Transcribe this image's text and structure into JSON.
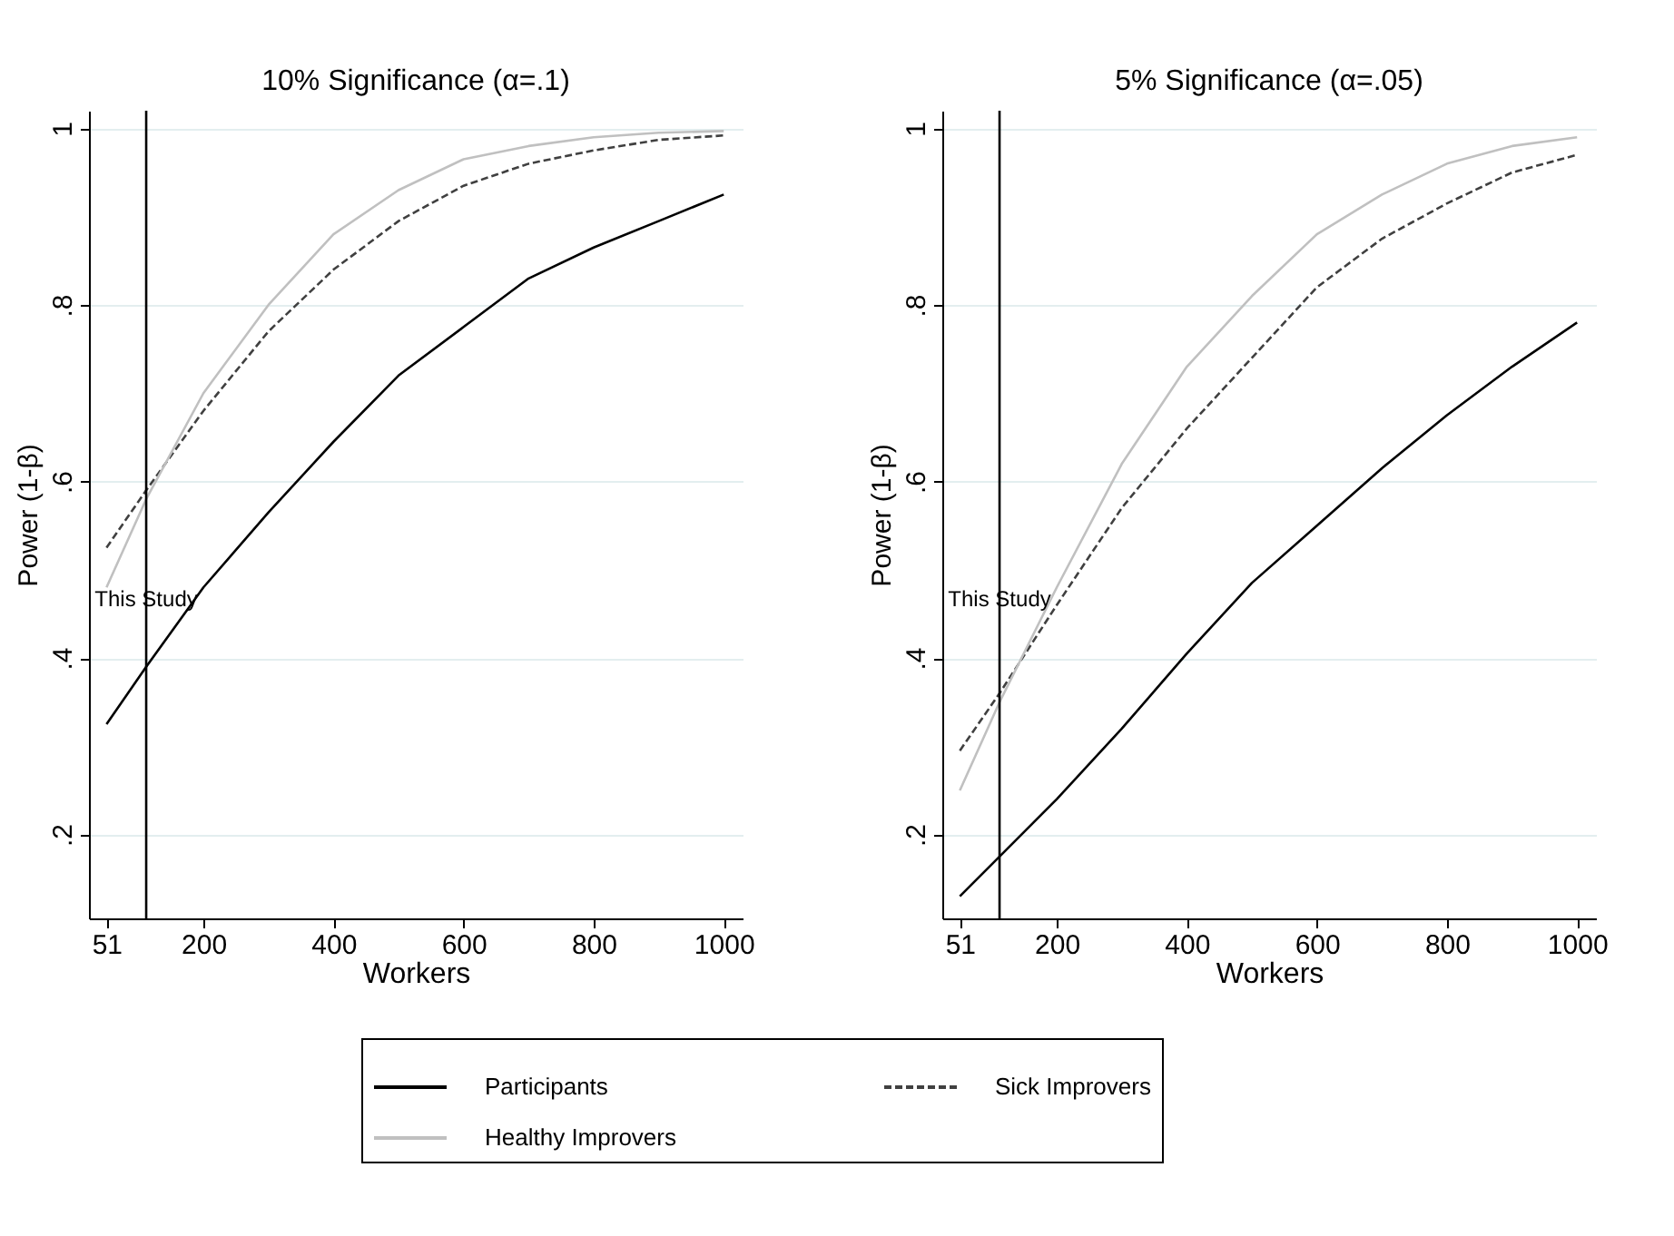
{
  "chart_data": [
    {
      "type": "line",
      "title": "10% Significance (α=.1)",
      "xlabel": "Workers",
      "ylabel": "Power (1-β)",
      "x": [
        51,
        112,
        200,
        300,
        400,
        500,
        600,
        700,
        800,
        900,
        1000
      ],
      "series": [
        {
          "name": "Participants",
          "color": "#000000",
          "line_style": "solid",
          "values": [
            0.325,
            0.39,
            0.48,
            0.565,
            0.645,
            0.72,
            0.775,
            0.83,
            0.865,
            0.895,
            0.925
          ]
        },
        {
          "name": "Sick Improvers",
          "color": "#404040",
          "line_style": "dashed",
          "values": [
            0.525,
            0.59,
            0.68,
            0.77,
            0.84,
            0.895,
            0.935,
            0.96,
            0.975,
            0.987,
            0.992
          ]
        },
        {
          "name": "Healthy Improvers",
          "color": "#c0c0c0",
          "line_style": "solid",
          "values": [
            0.48,
            0.58,
            0.7,
            0.8,
            0.88,
            0.93,
            0.965,
            0.98,
            0.99,
            0.995,
            0.997
          ]
        }
      ],
      "xlim": [
        24,
        1029
      ],
      "xticks": [
        51,
        200,
        400,
        600,
        800,
        1000
      ],
      "ylim": [
        0.105,
        1.02
      ],
      "yticks": [
        {
          "value": 0.2,
          "label": ".2"
        },
        {
          "value": 0.4,
          "label": ".4"
        },
        {
          "value": 0.6,
          "label": ".6"
        },
        {
          "value": 0.8,
          "label": ".8"
        },
        1
      ],
      "ref_lines": [
        {
          "axis": "x",
          "value": 112,
          "label": "This Study",
          "color": "#000000"
        }
      ],
      "grid": "y",
      "legend": "bottom",
      "marker": "none"
    },
    {
      "type": "line",
      "title": "5% Significance (α=.05)",
      "xlabel": "Workers",
      "ylabel": "Power (1-β)",
      "x": [
        51,
        112,
        200,
        300,
        400,
        500,
        600,
        700,
        800,
        900,
        1000
      ],
      "series": [
        {
          "color": "#000000",
          "line_style": "solid",
          "values": [
            0.13,
            0.175,
            0.24,
            0.32,
            0.405,
            0.485,
            0.55,
            0.615,
            0.675,
            0.73,
            0.78
          ]
        },
        {
          "color": "#404040",
          "line_style": "dashed",
          "values": [
            0.295,
            0.36,
            0.46,
            0.57,
            0.66,
            0.74,
            0.82,
            0.875,
            0.915,
            0.95,
            0.97
          ]
        },
        {
          "color": "#c0c0c0",
          "line_style": "solid",
          "values": [
            0.25,
            0.35,
            0.48,
            0.62,
            0.73,
            0.81,
            0.88,
            0.925,
            0.96,
            0.98,
            0.99
          ]
        }
      ],
      "xlim": [
        24,
        1029
      ],
      "xticks": [
        51,
        200,
        400,
        600,
        800,
        1000
      ],
      "ylim": [
        0.105,
        1.02
      ],
      "yticks": [
        {
          "value": 0.2,
          "label": ".2"
        },
        {
          "value": 0.4,
          "label": ".4"
        },
        {
          "value": 0.6,
          "label": ".6"
        },
        {
          "value": 0.8,
          "label": ".8"
        },
        1
      ],
      "ref_lines": [
        {
          "axis": "x",
          "value": 112,
          "label": "This Study",
          "color": "#000000"
        }
      ],
      "grid": "y",
      "marker": "none"
    }
  ]
}
